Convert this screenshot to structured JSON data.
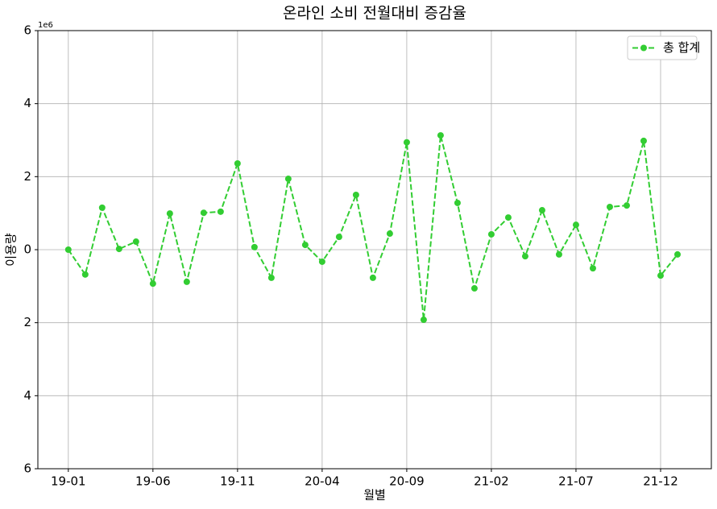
{
  "chart_data": {
    "type": "line",
    "title": "온라인 소비 전월대비 증감율",
    "xlabel": "월별",
    "ylabel": "이용량",
    "y_offset_label": "1e6",
    "categories": [
      "19-01",
      null,
      null,
      null,
      null,
      "19-06",
      null,
      null,
      null,
      null,
      "19-11",
      null,
      null,
      null,
      null,
      "20-04",
      null,
      null,
      null,
      null,
      "20-09",
      null,
      null,
      null,
      null,
      "21-02",
      null,
      null,
      null,
      null,
      "21-07",
      null,
      null,
      null,
      null,
      "21-12",
      null
    ],
    "series": [
      {
        "name": "총 합계",
        "color": "#32cd32",
        "values": [
          0,
          -0.68,
          1.15,
          0.02,
          0.22,
          -0.93,
          0.99,
          -0.88,
          1.01,
          1.04,
          2.36,
          0.07,
          -0.77,
          1.94,
          0.13,
          -0.33,
          0.35,
          1.5,
          -0.77,
          0.44,
          2.94,
          -1.92,
          3.13,
          1.28,
          -1.06,
          0.42,
          0.88,
          -0.18,
          1.08,
          -0.13,
          0.68,
          -0.51,
          1.17,
          1.21,
          2.98,
          -0.71,
          -0.13
        ]
      }
    ],
    "xlim": [
      -1.8,
      38
    ],
    "ylim": [
      -6,
      6
    ],
    "yticks": [
      {
        "value": -6,
        "label": "6"
      },
      {
        "value": -4,
        "label": "4"
      },
      {
        "value": -2,
        "label": "2"
      },
      0,
      2,
      4,
      6
    ],
    "grid": true,
    "legend": "upper right"
  }
}
